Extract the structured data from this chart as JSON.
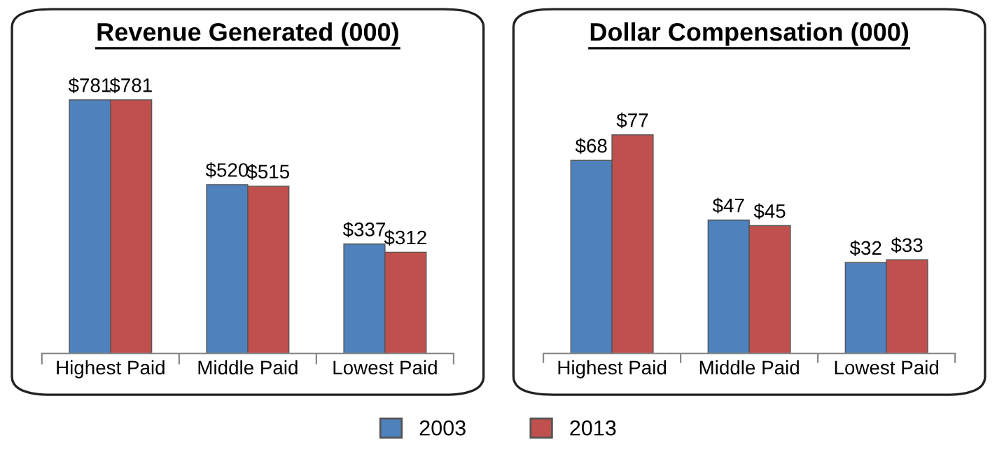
{
  "chart_data": [
    {
      "type": "bar",
      "title": "Revenue Generated (000)",
      "categories": [
        "Highest Paid",
        "Middle Paid",
        "Lowest Paid"
      ],
      "legend": "bottom",
      "series": [
        {
          "name": "2003",
          "color": "#4f81bd",
          "values": [
            781,
            520,
            337
          ],
          "value_labels": [
            "$781",
            "$520",
            "$337"
          ]
        },
        {
          "name": "2013",
          "color": "#c0504d",
          "values": [
            781,
            515,
            312
          ],
          "value_labels": [
            "$781",
            "$515",
            "$312"
          ]
        }
      ]
    },
    {
      "type": "bar",
      "title": "Dollar Compensation (000)",
      "categories": [
        "Highest Paid",
        "Middle Paid",
        "Lowest Paid"
      ],
      "legend": "bottom",
      "series": [
        {
          "name": "2003",
          "color": "#4f81bd",
          "values": [
            68,
            47,
            32
          ],
          "value_labels": [
            "$68",
            "$47",
            "$32"
          ]
        },
        {
          "name": "2013",
          "color": "#c0504d",
          "values": [
            77,
            45,
            33
          ],
          "value_labels": [
            "$77",
            "$45",
            "$33"
          ]
        }
      ]
    }
  ]
}
